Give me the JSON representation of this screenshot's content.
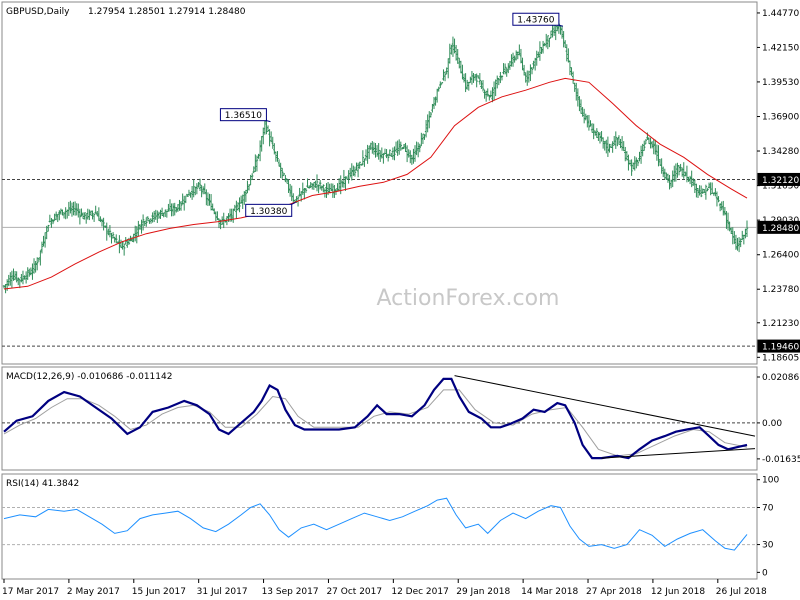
{
  "colors": {
    "background": "#ffffff",
    "price_bars": "#2e8b57",
    "moving_average": "#dd1111",
    "macd_main": "#000080",
    "macd_signal": "#a0a0a0",
    "rsi": "#1e90ff",
    "dotted_lines": "#444444",
    "current_price_line": "#b0b0b0"
  },
  "watermark": "ActionForex.com",
  "chart_data": [
    {
      "type": "ohlc",
      "title": "GBPUSD,Daily",
      "ohlc_text": "1.27954 1.28501 1.27914 1.28480",
      "y_ticks": [
        "1.44770",
        "1.42150",
        "1.39530",
        "1.36900",
        "1.34280",
        "1.31650",
        "1.29030",
        "1.26400",
        "1.23780",
        "1.21230",
        "1.18605"
      ],
      "ylim": [
        1.1825,
        1.4545
      ],
      "x_labels": [
        "17 Mar 2017",
        "2 May 2017",
        "15 Jun 2017",
        "31 Jul 2017",
        "13 Sep 2017",
        "27 Oct 2017",
        "12 Dec 2017",
        "29 Jan 2018",
        "14 Mar 2018",
        "27 Apr 2018",
        "12 Jun 2018",
        "26 Jul 2018"
      ],
      "moving_average_path": [
        [
          0,
          1.238
        ],
        [
          15,
          1.24
        ],
        [
          30,
          1.247
        ],
        [
          45,
          1.257
        ],
        [
          60,
          1.266
        ],
        [
          75,
          1.274
        ],
        [
          90,
          1.28
        ],
        [
          105,
          1.284
        ],
        [
          120,
          1.287
        ],
        [
          135,
          1.289
        ],
        [
          150,
          1.292
        ],
        [
          165,
          1.296
        ],
        [
          180,
          1.302
        ],
        [
          195,
          1.309
        ],
        [
          210,
          1.312
        ],
        [
          225,
          1.316
        ],
        [
          240,
          1.319
        ],
        [
          255,
          1.325
        ],
        [
          270,
          1.338
        ],
        [
          285,
          1.362
        ],
        [
          300,
          1.376
        ],
        [
          315,
          1.384
        ],
        [
          330,
          1.389
        ],
        [
          345,
          1.395
        ],
        [
          355,
          1.398
        ],
        [
          370,
          1.395
        ],
        [
          385,
          1.379
        ],
        [
          400,
          1.362
        ],
        [
          415,
          1.348
        ],
        [
          430,
          1.338
        ],
        [
          445,
          1.325
        ],
        [
          460,
          1.314
        ],
        [
          470,
          1.307
        ]
      ],
      "price_anchors": [
        [
          0,
          1.24
        ],
        [
          5,
          1.248
        ],
        [
          10,
          1.245
        ],
        [
          18,
          1.252
        ],
        [
          22,
          1.262
        ],
        [
          28,
          1.288
        ],
        [
          35,
          1.296
        ],
        [
          45,
          1.299
        ],
        [
          50,
          1.293
        ],
        [
          58,
          1.296
        ],
        [
          64,
          1.284
        ],
        [
          68,
          1.278
        ],
        [
          74,
          1.27
        ],
        [
          80,
          1.275
        ],
        [
          88,
          1.29
        ],
        [
          95,
          1.293
        ],
        [
          100,
          1.296
        ],
        [
          110,
          1.3
        ],
        [
          117,
          1.311
        ],
        [
          124,
          1.316
        ],
        [
          130,
          1.303
        ],
        [
          137,
          1.288
        ],
        [
          144,
          1.294
        ],
        [
          150,
          1.305
        ],
        [
          155,
          1.318
        ],
        [
          161,
          1.34
        ],
        [
          165,
          1.364
        ],
        [
          170,
          1.345
        ],
        [
          175,
          1.328
        ],
        [
          180,
          1.315
        ],
        [
          184,
          1.304
        ],
        [
          190,
          1.314
        ],
        [
          198,
          1.318
        ],
        [
          205,
          1.312
        ],
        [
          212,
          1.316
        ],
        [
          218,
          1.324
        ],
        [
          225,
          1.332
        ],
        [
          232,
          1.346
        ],
        [
          238,
          1.34
        ],
        [
          246,
          1.341
        ],
        [
          252,
          1.347
        ],
        [
          258,
          1.337
        ],
        [
          262,
          1.345
        ],
        [
          267,
          1.36
        ],
        [
          272,
          1.381
        ],
        [
          276,
          1.395
        ],
        [
          280,
          1.405
        ],
        [
          283,
          1.425
        ],
        [
          287,
          1.412
        ],
        [
          292,
          1.392
        ],
        [
          298,
          1.401
        ],
        [
          303,
          1.389
        ],
        [
          308,
          1.384
        ],
        [
          312,
          1.398
        ],
        [
          318,
          1.405
        ],
        [
          325,
          1.418
        ],
        [
          330,
          1.398
        ],
        [
          336,
          1.412
        ],
        [
          341,
          1.423
        ],
        [
          347,
          1.433
        ],
        [
          351,
          1.438
        ],
        [
          355,
          1.42
        ],
        [
          360,
          1.395
        ],
        [
          365,
          1.374
        ],
        [
          370,
          1.362
        ],
        [
          375,
          1.355
        ],
        [
          382,
          1.345
        ],
        [
          388,
          1.352
        ],
        [
          393,
          1.34
        ],
        [
          397,
          1.33
        ],
        [
          402,
          1.337
        ],
        [
          406,
          1.352
        ],
        [
          411,
          1.347
        ],
        [
          416,
          1.33
        ],
        [
          421,
          1.318
        ],
        [
          426,
          1.33
        ],
        [
          431,
          1.326
        ],
        [
          436,
          1.318
        ],
        [
          441,
          1.31
        ],
        [
          446,
          1.315
        ],
        [
          451,
          1.306
        ],
        [
          456,
          1.295
        ],
        [
          460,
          1.28
        ],
        [
          463,
          1.27
        ],
        [
          467,
          1.276
        ],
        [
          470,
          1.285
        ]
      ],
      "annotations": [
        {
          "label": "1.36510",
          "x": 166,
          "y": 1.3651
        },
        {
          "label": "1.30380",
          "x": 182,
          "y": 1.3038
        },
        {
          "label": "1.43760",
          "x": 351,
          "y": 1.4376
        }
      ],
      "horizontal_levels": [
        {
          "label": "1.32120",
          "value": 1.3212,
          "style": "dotted"
        },
        {
          "label": "1.19460",
          "value": 1.1946,
          "style": "dotted"
        },
        {
          "label": "1.28480",
          "value": 1.2848,
          "style": "current"
        }
      ]
    },
    {
      "type": "line",
      "title": "MACD(12,26,9) -0.010686 -0.011142",
      "y_ticks": [
        "0.020861",
        "0.00",
        "-0.016357"
      ],
      "ylim": [
        -0.0205,
        0.0245
      ],
      "zero_line": 0.0,
      "main_path": [
        [
          0,
          -0.004
        ],
        [
          8,
          0.001
        ],
        [
          18,
          0.003
        ],
        [
          28,
          0.01
        ],
        [
          38,
          0.014
        ],
        [
          48,
          0.012
        ],
        [
          58,
          0.007
        ],
        [
          68,
          0.002
        ],
        [
          78,
          -0.005
        ],
        [
          86,
          -0.002
        ],
        [
          94,
          0.005
        ],
        [
          104,
          0.007
        ],
        [
          114,
          0.01
        ],
        [
          122,
          0.008
        ],
        [
          130,
          0.004
        ],
        [
          136,
          -0.003
        ],
        [
          142,
          -0.005
        ],
        [
          150,
          0.0
        ],
        [
          158,
          0.005
        ],
        [
          163,
          0.01
        ],
        [
          168,
          0.017
        ],
        [
          173,
          0.015
        ],
        [
          178,
          0.006
        ],
        [
          184,
          -0.001
        ],
        [
          190,
          -0.003
        ],
        [
          200,
          -0.003
        ],
        [
          212,
          -0.003
        ],
        [
          222,
          -0.002
        ],
        [
          230,
          0.003
        ],
        [
          236,
          0.008
        ],
        [
          242,
          0.004
        ],
        [
          250,
          0.004
        ],
        [
          258,
          0.003
        ],
        [
          266,
          0.008
        ],
        [
          272,
          0.015
        ],
        [
          278,
          0.02
        ],
        [
          283,
          0.02
        ],
        [
          288,
          0.012
        ],
        [
          294,
          0.005
        ],
        [
          302,
          0.002
        ],
        [
          308,
          -0.002
        ],
        [
          314,
          -0.002
        ],
        [
          320,
          -0.0005
        ],
        [
          328,
          0.002
        ],
        [
          335,
          0.006
        ],
        [
          342,
          0.005
        ],
        [
          350,
          0.009
        ],
        [
          355,
          0.008
        ],
        [
          361,
          0.0
        ],
        [
          366,
          -0.01
        ],
        [
          372,
          -0.016
        ],
        [
          378,
          -0.016
        ],
        [
          388,
          -0.015
        ],
        [
          395,
          -0.016
        ],
        [
          402,
          -0.012
        ],
        [
          410,
          -0.008
        ],
        [
          418,
          -0.006
        ],
        [
          425,
          -0.004
        ],
        [
          432,
          -0.003
        ],
        [
          440,
          -0.002
        ],
        [
          446,
          -0.006
        ],
        [
          452,
          -0.01
        ],
        [
          458,
          -0.012
        ],
        [
          464,
          -0.011
        ],
        [
          470,
          -0.01
        ]
      ],
      "signal_path": [
        [
          0,
          -0.005
        ],
        [
          10,
          -0.001
        ],
        [
          20,
          0.002
        ],
        [
          30,
          0.007
        ],
        [
          40,
          0.011
        ],
        [
          50,
          0.011
        ],
        [
          60,
          0.008
        ],
        [
          70,
          0.003
        ],
        [
          80,
          -0.003
        ],
        [
          90,
          -0.001
        ],
        [
          100,
          0.004
        ],
        [
          110,
          0.007
        ],
        [
          120,
          0.008
        ],
        [
          130,
          0.005
        ],
        [
          140,
          -0.002
        ],
        [
          150,
          -0.002
        ],
        [
          160,
          0.004
        ],
        [
          170,
          0.012
        ],
        [
          178,
          0.011
        ],
        [
          186,
          0.003
        ],
        [
          196,
          -0.002
        ],
        [
          210,
          -0.002
        ],
        [
          224,
          -0.002
        ],
        [
          234,
          0.003
        ],
        [
          244,
          0.005
        ],
        [
          256,
          0.004
        ],
        [
          268,
          0.007
        ],
        [
          278,
          0.015
        ],
        [
          288,
          0.015
        ],
        [
          298,
          0.006
        ],
        [
          310,
          0.0
        ],
        [
          322,
          -0.001
        ],
        [
          334,
          0.004
        ],
        [
          346,
          0.006
        ],
        [
          356,
          0.007
        ],
        [
          366,
          -0.002
        ],
        [
          376,
          -0.012
        ],
        [
          388,
          -0.015
        ],
        [
          400,
          -0.014
        ],
        [
          412,
          -0.01
        ],
        [
          424,
          -0.006
        ],
        [
          436,
          -0.003
        ],
        [
          446,
          -0.004
        ],
        [
          456,
          -0.009
        ],
        [
          470,
          -0.011
        ]
      ],
      "trend_lines": [
        {
          "from": [
            285,
            0.0215
          ],
          "to": [
            470,
            -0.006
          ]
        },
        {
          "from": [
            378,
            -0.016
          ],
          "to": [
            470,
            -0.0117
          ]
        }
      ]
    },
    {
      "type": "line",
      "title": "RSI(14) 41.3842",
      "y_ticks": [
        "100",
        "70",
        "30",
        "0"
      ],
      "ylim": [
        -5,
        104
      ],
      "levels": [
        70,
        30
      ],
      "rsi_path": [
        [
          0,
          58
        ],
        [
          10,
          62
        ],
        [
          20,
          60
        ],
        [
          28,
          68
        ],
        [
          38,
          66
        ],
        [
          46,
          68
        ],
        [
          54,
          60
        ],
        [
          62,
          52
        ],
        [
          70,
          42
        ],
        [
          78,
          45
        ],
        [
          86,
          58
        ],
        [
          94,
          62
        ],
        [
          102,
          64
        ],
        [
          110,
          66
        ],
        [
          118,
          58
        ],
        [
          126,
          48
        ],
        [
          134,
          44
        ],
        [
          142,
          52
        ],
        [
          150,
          62
        ],
        [
          156,
          70
        ],
        [
          162,
          74
        ],
        [
          168,
          62
        ],
        [
          174,
          46
        ],
        [
          180,
          38
        ],
        [
          188,
          48
        ],
        [
          196,
          52
        ],
        [
          204,
          46
        ],
        [
          212,
          52
        ],
        [
          220,
          58
        ],
        [
          228,
          64
        ],
        [
          236,
          60
        ],
        [
          244,
          56
        ],
        [
          252,
          60
        ],
        [
          260,
          66
        ],
        [
          268,
          72
        ],
        [
          274,
          78
        ],
        [
          280,
          80
        ],
        [
          286,
          62
        ],
        [
          292,
          48
        ],
        [
          300,
          52
        ],
        [
          306,
          42
        ],
        [
          314,
          56
        ],
        [
          322,
          64
        ],
        [
          330,
          58
        ],
        [
          338,
          66
        ],
        [
          346,
          72
        ],
        [
          352,
          70
        ],
        [
          358,
          50
        ],
        [
          364,
          36
        ],
        [
          370,
          28
        ],
        [
          378,
          30
        ],
        [
          386,
          26
        ],
        [
          394,
          30
        ],
        [
          402,
          46
        ],
        [
          410,
          40
        ],
        [
          418,
          28
        ],
        [
          426,
          36
        ],
        [
          434,
          42
        ],
        [
          442,
          46
        ],
        [
          450,
          34
        ],
        [
          456,
          26
        ],
        [
          462,
          24
        ],
        [
          470,
          41
        ]
      ]
    }
  ]
}
